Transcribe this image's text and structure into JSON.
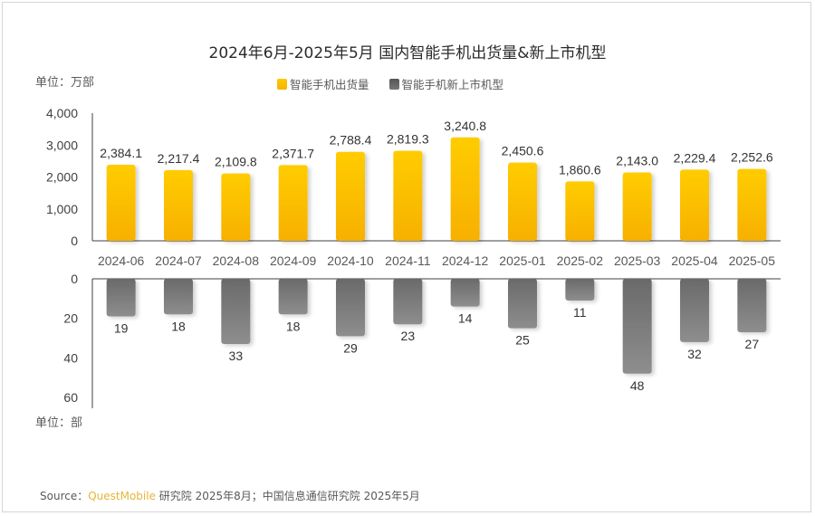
{
  "title": "2024年6月-2025年5月 国内智能手机出货量&新上市机型",
  "legend": [
    {
      "label": "智能手机出货量",
      "color": "#FFC000"
    },
    {
      "label": "智能手机新上市机型",
      "color": "#666666"
    }
  ],
  "unit_top": "单位：万部",
  "unit_bottom": "单位：部",
  "source": {
    "prefix": "Source：",
    "brand": "QuestMobile",
    "rest": " 研究院 2025年8月；中国信息通信研究院 2025年5月"
  },
  "chart_data": [
    {
      "type": "bar",
      "title": "2024年6月-2025年5月 国内智能手机出货量&新上市机型",
      "name": "智能手机出货量",
      "ylabel": "单位：万部",
      "categories": [
        "2024-06",
        "2024-07",
        "2024-08",
        "2024-09",
        "2024-10",
        "2024-11",
        "2024-12",
        "2025-01",
        "2025-02",
        "2025-03",
        "2025-04",
        "2025-05"
      ],
      "values": [
        2384.1,
        2217.4,
        2109.8,
        2371.7,
        2788.4,
        2819.3,
        3240.8,
        2450.6,
        1860.6,
        2143.0,
        2229.4,
        2252.6
      ],
      "value_labels": [
        "2,384.1",
        "2,217.4",
        "2,109.8",
        "2,371.7",
        "2,788.4",
        "2,819.3",
        "3,240.8",
        "2,450.6",
        "1,860.6",
        "2,143.0",
        "2,229.4",
        "2,252.6"
      ],
      "ylim": [
        0,
        4000
      ],
      "yticks": [
        "4,000",
        "3,000",
        "2,000",
        "1,000",
        "0"
      ],
      "ytick_values": [
        4000,
        3000,
        2000,
        1000,
        0
      ],
      "color": "#FFC000",
      "grid": false
    },
    {
      "type": "bar",
      "name": "智能手机新上市机型",
      "ylabel": "单位：部",
      "orientation": "inverted",
      "categories": [
        "2024-06",
        "2024-07",
        "2024-08",
        "2024-09",
        "2024-10",
        "2024-11",
        "2024-12",
        "2025-01",
        "2025-02",
        "2025-03",
        "2025-04",
        "2025-05"
      ],
      "values": [
        19,
        18,
        33,
        18,
        29,
        23,
        14,
        25,
        11,
        48,
        32,
        27
      ],
      "ylim": [
        0,
        60
      ],
      "yticks": [
        "0",
        "20",
        "40",
        "60"
      ],
      "ytick_values": [
        0,
        20,
        40,
        60
      ],
      "color": "#666666",
      "grid": false
    }
  ]
}
